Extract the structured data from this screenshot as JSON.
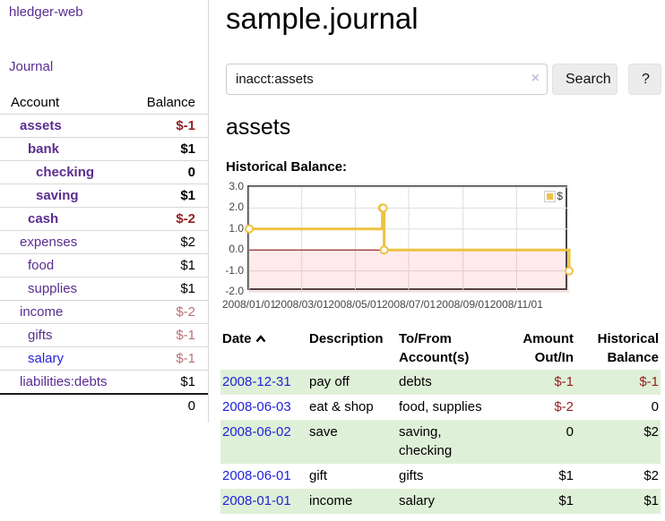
{
  "sidebar": {
    "brand": "hledger-web",
    "journal_label": "Journal",
    "accounts_table": {
      "headers": {
        "account": "Account",
        "balance": "Balance"
      },
      "rows": [
        {
          "name": "assets",
          "depth": 1,
          "bold": true,
          "balance": "$-1",
          "neg": "strong"
        },
        {
          "name": "bank",
          "depth": 2,
          "bold": true,
          "balance": "$1",
          "neg": "none"
        },
        {
          "name": "checking",
          "depth": 3,
          "bold": true,
          "balance": "0",
          "neg": "none"
        },
        {
          "name": "saving",
          "depth": 3,
          "bold": true,
          "balance": "$1",
          "neg": "none"
        },
        {
          "name": "cash",
          "depth": 2,
          "bold": true,
          "balance": "$-2",
          "neg": "strong"
        },
        {
          "name": "expenses",
          "depth": 1,
          "bold": false,
          "balance": "$2",
          "neg": "none"
        },
        {
          "name": "food",
          "depth": 2,
          "bold": false,
          "balance": "$1",
          "neg": "none"
        },
        {
          "name": "supplies",
          "depth": 2,
          "bold": false,
          "balance": "$1",
          "neg": "none"
        },
        {
          "name": "income",
          "depth": 1,
          "bold": false,
          "balance": "$-2",
          "neg": "muted"
        },
        {
          "name": "gifts",
          "depth": 2,
          "bold": false,
          "balance": "$-1",
          "neg": "muted"
        },
        {
          "name": "salary",
          "depth": 2,
          "bold": false,
          "balance": "$-1",
          "neg": "muted",
          "link_color": "blue"
        },
        {
          "name": "liabilities:debts",
          "depth": 1,
          "bold": false,
          "balance": "$1",
          "neg": "none"
        }
      ],
      "total": "0"
    }
  },
  "header": {
    "title": "sample.journal"
  },
  "search": {
    "value": "inacct:assets",
    "clear_icon": "×",
    "button_label": "Search",
    "help_label": "?"
  },
  "account_page": {
    "title": "assets",
    "chart_label": "Historical Balance:"
  },
  "chart_data": {
    "type": "line",
    "title": "Historical Balance",
    "steps": true,
    "x_domain": [
      "2008/01/01",
      "2008/12/31"
    ],
    "ylim": [
      -2,
      3
    ],
    "x_ticks": [
      "2008/01/01",
      "2008/03/01",
      "2008/05/01",
      "2008/07/01",
      "2008/09/01",
      "2008/11/01"
    ],
    "y_ticks": [
      3.0,
      2.0,
      1.0,
      0.0,
      -1.0,
      -2.0
    ],
    "grid": true,
    "series": [
      {
        "name": "$",
        "color": "#edc240",
        "marker": "open-circle",
        "points": [
          {
            "x": "2008/01/01",
            "y": 1
          },
          {
            "x": "2008/06/01",
            "y": 2
          },
          {
            "x": "2008/06/02",
            "y": 2
          },
          {
            "x": "2008/06/03",
            "y": 0
          },
          {
            "x": "2008/12/31",
            "y": -1
          }
        ]
      }
    ],
    "negative_region_color": "#ff0000",
    "negative_region_opacity": 0.08,
    "zero_line_color": "#8b0000",
    "grid_color": "#dedede",
    "legend": {
      "position": "top-right",
      "label": "$",
      "swatch_color": "#edc240"
    }
  },
  "register": {
    "headers": {
      "date": "Date",
      "description": "Description",
      "accounts": "To/From\nAccount(s)",
      "amount": "Amount\nOut/In",
      "balance": "Historical\nBalance"
    },
    "sort_icon": "chevron-up",
    "rows": [
      {
        "date": "2008-12-31",
        "description": "pay off",
        "accounts": "debts",
        "amount": "$-1",
        "amount_neg": true,
        "balance": "$-1",
        "balance_neg": true,
        "shaded": true
      },
      {
        "date": "2008-06-03",
        "description": "eat & shop",
        "accounts": "food, supplies",
        "amount": "$-2",
        "amount_neg": true,
        "balance": "0",
        "balance_neg": false,
        "shaded": false
      },
      {
        "date": "2008-06-02",
        "description": "save",
        "accounts": "saving,\nchecking",
        "amount": "0",
        "amount_neg": false,
        "balance": "$2",
        "balance_neg": false,
        "shaded": true
      },
      {
        "date": "2008-06-01",
        "description": "gift",
        "accounts": "gifts",
        "amount": "$1",
        "amount_neg": false,
        "balance": "$2",
        "balance_neg": false,
        "shaded": false
      },
      {
        "date": "2008-01-01",
        "description": "income",
        "accounts": "salary",
        "amount": "$1",
        "amount_neg": false,
        "balance": "$1",
        "balance_neg": false,
        "shaded": true
      }
    ]
  }
}
